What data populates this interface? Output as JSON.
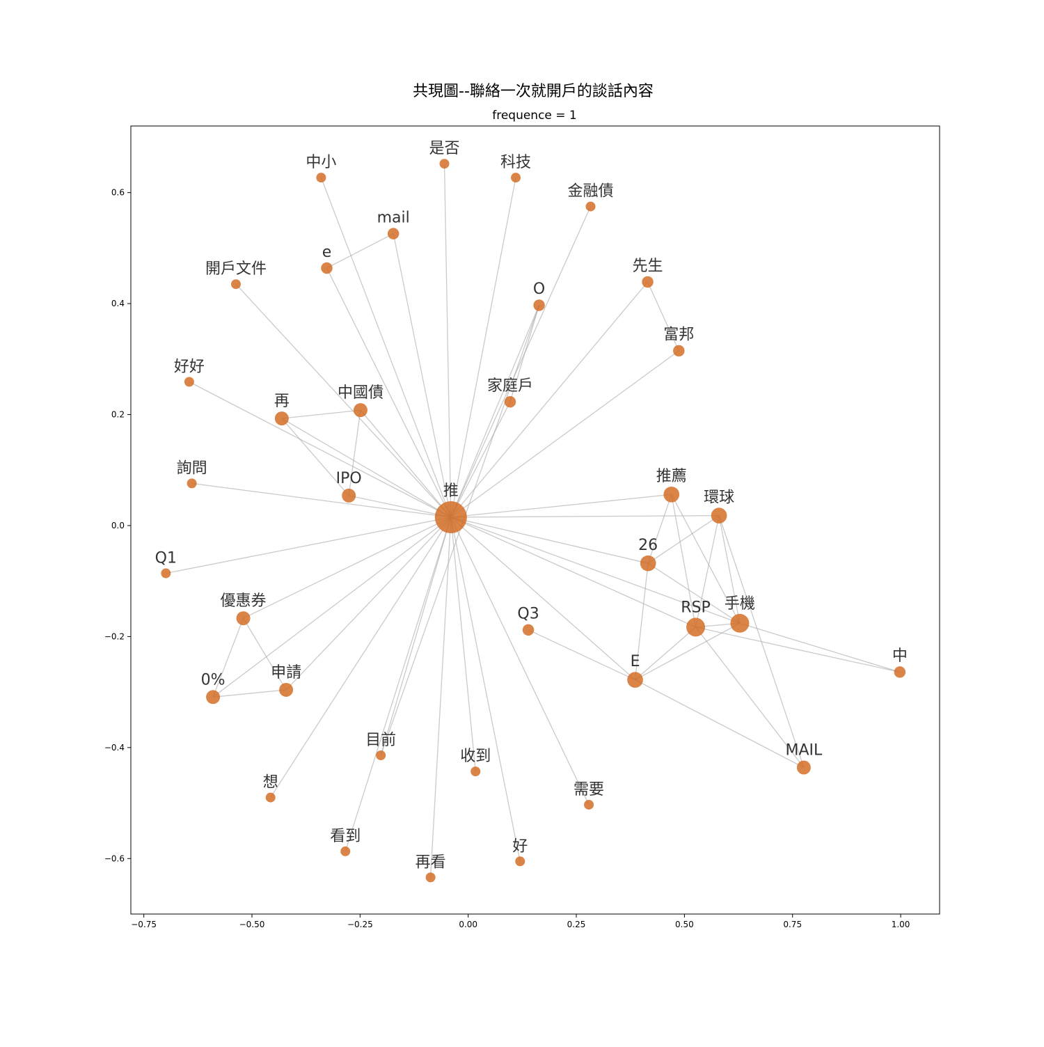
{
  "chart_data": {
    "type": "network",
    "title": "共現圖--聯絡一次就開戶的談話內容",
    "subtitle": "frequence = 1",
    "xlim": [
      -0.78,
      1.09
    ],
    "ylim": [
      -0.7,
      0.72
    ],
    "x_ticks": [
      -0.75,
      -0.5,
      -0.25,
      0.0,
      0.25,
      0.5,
      0.75,
      1.0
    ],
    "x_tick_labels": [
      "−0.75",
      "−0.50",
      "−0.25",
      "0.00",
      "0.25",
      "0.50",
      "0.75",
      "1.00"
    ],
    "y_ticks": [
      -0.6,
      -0.4,
      -0.2,
      0.0,
      0.2,
      0.4,
      0.6
    ],
    "y_tick_labels": [
      "−0.6",
      "−0.4",
      "−0.2",
      "0.0",
      "0.2",
      "0.4",
      "0.6"
    ],
    "grid": false,
    "colors": {
      "node": "#d2691e",
      "edge": "#aaaaaa"
    },
    "nodes": [
      {
        "id": "推",
        "x": -0.04,
        "y": 0.015,
        "weight": 40
      },
      {
        "id": "中小",
        "x": -0.34,
        "y": 0.627,
        "weight": 1
      },
      {
        "id": "是否",
        "x": -0.055,
        "y": 0.652,
        "weight": 1
      },
      {
        "id": "科技",
        "x": 0.11,
        "y": 0.627,
        "weight": 1
      },
      {
        "id": "金融債",
        "x": 0.283,
        "y": 0.575,
        "weight": 1
      },
      {
        "id": "mail",
        "x": -0.173,
        "y": 0.526,
        "weight": 2
      },
      {
        "id": "e",
        "x": -0.327,
        "y": 0.464,
        "weight": 2
      },
      {
        "id": "開戶文件",
        "x": -0.537,
        "y": 0.435,
        "weight": 1
      },
      {
        "id": "O",
        "x": 0.164,
        "y": 0.397,
        "weight": 2
      },
      {
        "id": "先生",
        "x": 0.415,
        "y": 0.439,
        "weight": 2
      },
      {
        "id": "富邦",
        "x": 0.487,
        "y": 0.315,
        "weight": 2
      },
      {
        "id": "好好",
        "x": -0.645,
        "y": 0.259,
        "weight": 1
      },
      {
        "id": "家庭戶",
        "x": 0.097,
        "y": 0.223,
        "weight": 2
      },
      {
        "id": "再",
        "x": -0.431,
        "y": 0.193,
        "weight": 4
      },
      {
        "id": "中國債",
        "x": -0.249,
        "y": 0.208,
        "weight": 4
      },
      {
        "id": "詢問",
        "x": -0.639,
        "y": 0.076,
        "weight": 1
      },
      {
        "id": "IPO",
        "x": -0.276,
        "y": 0.054,
        "weight": 4
      },
      {
        "id": "推薦",
        "x": 0.47,
        "y": 0.056,
        "weight": 6
      },
      {
        "id": "環球",
        "x": 0.58,
        "y": 0.018,
        "weight": 6
      },
      {
        "id": "26",
        "x": 0.416,
        "y": -0.068,
        "weight": 6
      },
      {
        "id": "Q1",
        "x": -0.699,
        "y": -0.086,
        "weight": 1
      },
      {
        "id": "優惠券",
        "x": -0.52,
        "y": -0.167,
        "weight": 4
      },
      {
        "id": "RSP",
        "x": 0.526,
        "y": -0.183,
        "weight": 10
      },
      {
        "id": "手機",
        "x": 0.628,
        "y": -0.176,
        "weight": 10
      },
      {
        "id": "Q3",
        "x": 0.139,
        "y": -0.188,
        "weight": 2
      },
      {
        "id": "中",
        "x": 0.998,
        "y": -0.264,
        "weight": 2
      },
      {
        "id": "E",
        "x": 0.386,
        "y": -0.278,
        "weight": 6
      },
      {
        "id": "0%",
        "x": -0.59,
        "y": -0.309,
        "weight": 4
      },
      {
        "id": "申請",
        "x": -0.421,
        "y": -0.296,
        "weight": 4
      },
      {
        "id": "目前",
        "x": -0.202,
        "y": -0.414,
        "weight": 1
      },
      {
        "id": "收到",
        "x": 0.017,
        "y": -0.443,
        "weight": 1
      },
      {
        "id": "MAIL",
        "x": 0.776,
        "y": -0.436,
        "weight": 4
      },
      {
        "id": "想",
        "x": -0.457,
        "y": -0.49,
        "weight": 1
      },
      {
        "id": "需要",
        "x": 0.279,
        "y": -0.503,
        "weight": 1
      },
      {
        "id": "看到",
        "x": -0.284,
        "y": -0.587,
        "weight": 1
      },
      {
        "id": "好",
        "x": 0.12,
        "y": -0.605,
        "weight": 1
      },
      {
        "id": "再看",
        "x": -0.087,
        "y": -0.634,
        "weight": 1
      }
    ],
    "edges": [
      [
        "推",
        "中小"
      ],
      [
        "推",
        "是否"
      ],
      [
        "推",
        "科技"
      ],
      [
        "推",
        "金融債"
      ],
      [
        "推",
        "mail"
      ],
      [
        "推",
        "e"
      ],
      [
        "推",
        "開戶文件"
      ],
      [
        "推",
        "O"
      ],
      [
        "推",
        "先生"
      ],
      [
        "推",
        "富邦"
      ],
      [
        "推",
        "好好"
      ],
      [
        "推",
        "家庭戶"
      ],
      [
        "推",
        "再"
      ],
      [
        "推",
        "中國債"
      ],
      [
        "推",
        "詢問"
      ],
      [
        "推",
        "IPO"
      ],
      [
        "推",
        "推薦"
      ],
      [
        "推",
        "環球"
      ],
      [
        "推",
        "26"
      ],
      [
        "推",
        "Q1"
      ],
      [
        "推",
        "優惠券"
      ],
      [
        "推",
        "RSP"
      ],
      [
        "推",
        "手機"
      ],
      [
        "推",
        "E"
      ],
      [
        "推",
        "0%"
      ],
      [
        "推",
        "申請"
      ],
      [
        "推",
        "目前"
      ],
      [
        "推",
        "收到"
      ],
      [
        "推",
        "想"
      ],
      [
        "推",
        "需要"
      ],
      [
        "推",
        "看到"
      ],
      [
        "推",
        "好"
      ],
      [
        "推",
        "再看"
      ],
      [
        "e",
        "mail"
      ],
      [
        "先生",
        "富邦"
      ],
      [
        "家庭戶",
        "O"
      ],
      [
        "再",
        "中國債"
      ],
      [
        "再",
        "IPO"
      ],
      [
        "中國債",
        "IPO"
      ],
      [
        "優惠券",
        "0%"
      ],
      [
        "優惠券",
        "申請"
      ],
      [
        "0%",
        "申請"
      ],
      [
        "目前",
        "O"
      ],
      [
        "推薦",
        "26"
      ],
      [
        "推薦",
        "RSP"
      ],
      [
        "推薦",
        "手機"
      ],
      [
        "環球",
        "26"
      ],
      [
        "環球",
        "RSP"
      ],
      [
        "環球",
        "手機"
      ],
      [
        "環球",
        "MAIL"
      ],
      [
        "26",
        "E"
      ],
      [
        "26",
        "手機"
      ],
      [
        "RSP",
        "手機"
      ],
      [
        "RSP",
        "E"
      ],
      [
        "RSP",
        "MAIL"
      ],
      [
        "RSP",
        "中"
      ],
      [
        "手機",
        "E"
      ],
      [
        "手機",
        "中"
      ],
      [
        "Q3",
        "E"
      ],
      [
        "E",
        "MAIL"
      ]
    ]
  }
}
